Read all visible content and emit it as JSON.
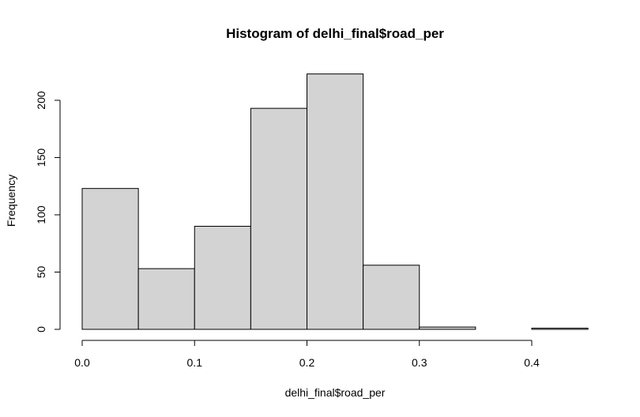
{
  "chart_data": {
    "type": "bar",
    "title": "Histogram of delhi_final$road_per",
    "xlabel": "delhi_final$road_per",
    "ylabel": "Frequency",
    "bins": [
      {
        "start": 0.0,
        "end": 0.05,
        "count": 123
      },
      {
        "start": 0.05,
        "end": 0.1,
        "count": 53
      },
      {
        "start": 0.1,
        "end": 0.15,
        "count": 90
      },
      {
        "start": 0.15,
        "end": 0.2,
        "count": 193
      },
      {
        "start": 0.2,
        "end": 0.25,
        "count": 223
      },
      {
        "start": 0.25,
        "end": 0.3,
        "count": 56
      },
      {
        "start": 0.3,
        "end": 0.35,
        "count": 2
      },
      {
        "start": 0.35,
        "end": 0.4,
        "count": 0
      },
      {
        "start": 0.4,
        "end": 0.45,
        "count": 1
      }
    ],
    "xlim": [
      0.0,
      0.45
    ],
    "ylim": [
      0,
      223
    ],
    "x_ticks": [
      0.0,
      0.1,
      0.2,
      0.3,
      0.4
    ],
    "x_tick_labels": [
      "0.0",
      "0.1",
      "0.2",
      "0.3",
      "0.4"
    ],
    "y_ticks": [
      0,
      50,
      100,
      150,
      200
    ],
    "y_tick_labels": [
      "0",
      "50",
      "100",
      "150",
      "200"
    ],
    "bar_fill": "#d3d3d3",
    "bar_stroke": "#000000",
    "grid": false
  }
}
